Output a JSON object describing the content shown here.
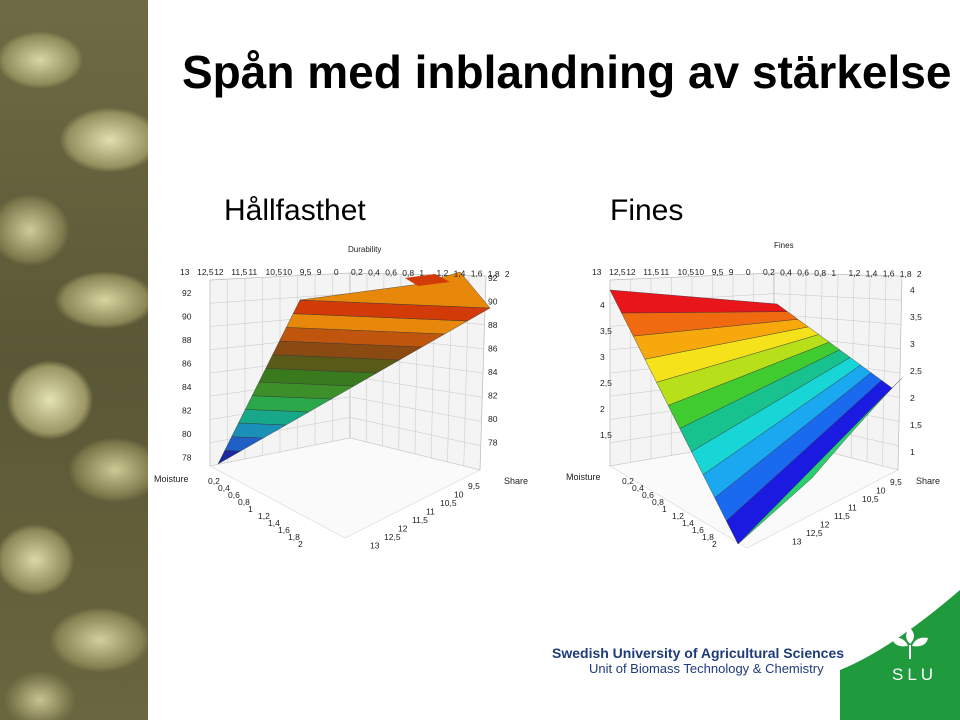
{
  "slide": {
    "title": "Spån med inblandning av stärkelse"
  },
  "charts": [
    {
      "heading": "Hållfasthet",
      "z_label": "Durability",
      "x_label": "Moisture",
      "y_label": "Share",
      "back_ticks": [
        "13",
        "12,5",
        "12",
        "11,5",
        "11",
        "10,5",
        "10",
        "9,5",
        "9",
        "0",
        "0,2",
        "0,4",
        "0,6",
        "0,8",
        "1",
        "1,2",
        "1,4",
        "1,6",
        "1,8",
        "2"
      ],
      "z_ticks_left": [
        "92",
        "90",
        "88",
        "86",
        "84",
        "82",
        "80",
        "78"
      ],
      "z_ticks_right": [
        "92",
        "90",
        "88",
        "86",
        "84",
        "82",
        "80",
        "78"
      ],
      "moisture_ticks": [
        "0,2",
        "0,4",
        "0,6",
        "0,8",
        "1",
        "1,2",
        "1,4",
        "1,6",
        "1,8",
        "2"
      ],
      "share_ticks": [
        "9,5",
        "10",
        "10,5",
        "11",
        "11,5",
        "12",
        "12,5",
        "13"
      ],
      "colors": [
        "#1a2a9e",
        "#1f5fc6",
        "#1a8fb8",
        "#17a88a",
        "#2aa84a",
        "#3d8f2a",
        "#3a7a1e",
        "#5a5a18",
        "#8a4a12",
        "#c0560e",
        "#e8880a",
        "#d23a08"
      ]
    },
    {
      "heading": "Fines",
      "z_label": "Fines",
      "x_label": "Moisture",
      "y_label": "Share",
      "back_ticks": [
        "13",
        "12,5",
        "12",
        "11,5",
        "11",
        "10,5",
        "10",
        "9,5",
        "9",
        "0",
        "0,2",
        "0,4",
        "0,6",
        "0,8",
        "1",
        "1,2",
        "1,4",
        "1,6",
        "1,8",
        "2"
      ],
      "z_ticks_left": [
        "4",
        "3,5",
        "3",
        "2,5",
        "2",
        "1,5"
      ],
      "z_ticks_right": [
        "4",
        "3,5",
        "3",
        "2,5",
        "2",
        "1,5",
        "1"
      ],
      "moisture_ticks": [
        "0,2",
        "0,4",
        "0,6",
        "0,8",
        "1",
        "1,2",
        "1,4",
        "1,6",
        "1,8",
        "2"
      ],
      "share_ticks": [
        "9,5",
        "10",
        "10,5",
        "11",
        "11,5",
        "12",
        "12,5",
        "13"
      ],
      "colors": [
        "#e8161a",
        "#f06a10",
        "#f7a80a",
        "#f6e21a",
        "#b7e01a",
        "#40cc30",
        "#18c28e",
        "#19d6d6",
        "#1aa8f0",
        "#1a6af0",
        "#1a1ae0"
      ]
    }
  ],
  "footer": {
    "university": "Swedish University of Agricultural Sciences",
    "unit": "Unit of Biomass Technology & Chemistry",
    "logo_text": "SLU",
    "logo_color": "#1f9a3c"
  }
}
